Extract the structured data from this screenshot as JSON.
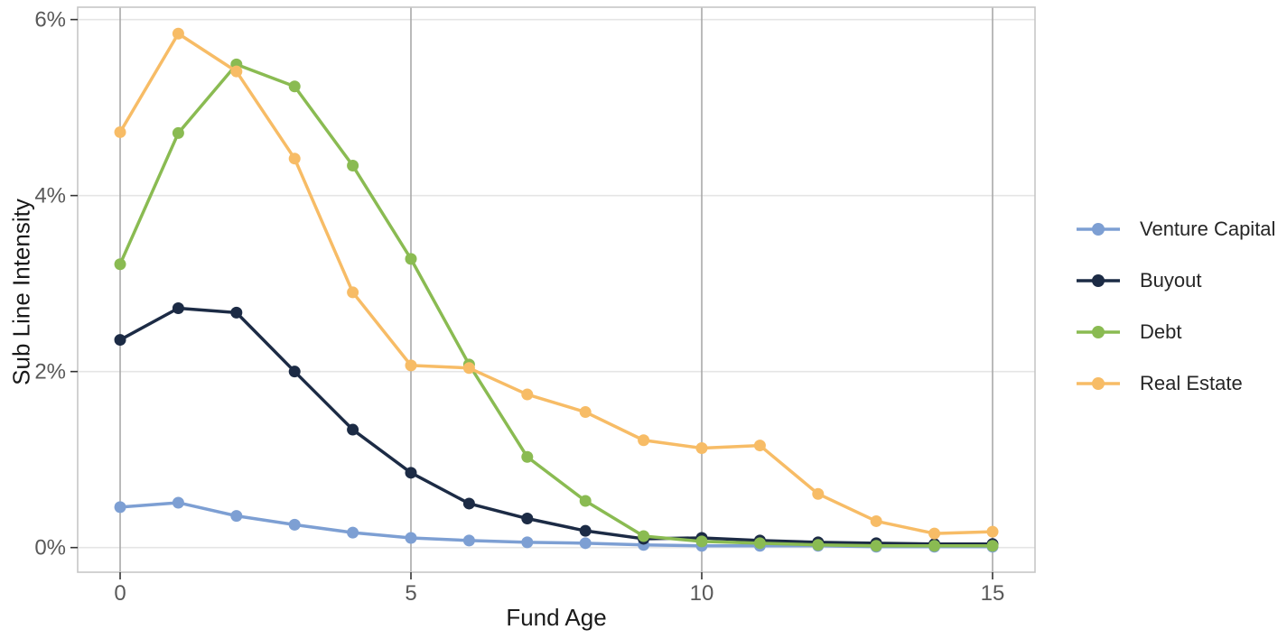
{
  "chart_data": {
    "type": "line",
    "title": "",
    "xlabel": "Fund Age",
    "ylabel": "Sub Line Intensity",
    "x": [
      0,
      1,
      2,
      3,
      4,
      5,
      6,
      7,
      8,
      9,
      10,
      11,
      12,
      13,
      14,
      15
    ],
    "x_ticks": [
      0,
      5,
      10,
      15
    ],
    "y_ticks": [
      {
        "value": 0,
        "label": "0%"
      },
      {
        "value": 2,
        "label": "2%"
      },
      {
        "value": 4,
        "label": "4%"
      },
      {
        "value": 6,
        "label": "6%"
      }
    ],
    "xlim": [
      -0.73,
      15.73
    ],
    "ylim": [
      -0.28,
      6.14
    ],
    "grid": {
      "vertical_major": true,
      "horizontal_major": true
    },
    "legend_position": "right",
    "series": [
      {
        "name": "Venture Capital",
        "color": "#7D9FD3",
        "values": [
          0.46,
          0.51,
          0.36,
          0.26,
          0.17,
          0.11,
          0.08,
          0.06,
          0.05,
          0.03,
          0.02,
          0.02,
          0.02,
          0.01,
          0.01,
          0.01
        ]
      },
      {
        "name": "Buyout",
        "color": "#1C2B45",
        "values": [
          2.36,
          2.72,
          2.67,
          2.0,
          1.34,
          0.85,
          0.5,
          0.33,
          0.19,
          0.1,
          0.11,
          0.08,
          0.06,
          0.05,
          0.04,
          0.04
        ]
      },
      {
        "name": "Debt",
        "color": "#8ABB52",
        "values": [
          3.22,
          4.71,
          5.49,
          5.24,
          4.34,
          3.28,
          2.08,
          1.03,
          0.53,
          0.13,
          0.07,
          0.05,
          0.03,
          0.02,
          0.02,
          0.02
        ]
      },
      {
        "name": "Real Estate",
        "color": "#F7BC66",
        "values": [
          4.72,
          5.84,
          5.41,
          4.42,
          2.9,
          2.07,
          2.04,
          1.74,
          1.54,
          1.22,
          1.13,
          1.16,
          0.61,
          0.3,
          0.16,
          0.18
        ]
      }
    ],
    "colors": {
      "background": "#ffffff",
      "plot_border": "#c6c6c6",
      "grid_vertical": "#a9a9a9",
      "grid_horizontal": "#e5e5e5",
      "tick_mark": "#333333",
      "tick_label": "#595959",
      "axis_title": "#1a1a1a",
      "legend_text": "#262626"
    }
  }
}
